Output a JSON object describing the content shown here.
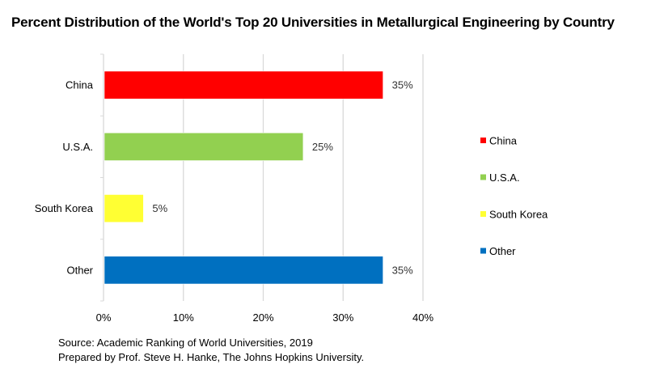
{
  "chart_data": {
    "type": "bar",
    "orientation": "horizontal",
    "title": "Percent Distribution of the World's Top 20 Universities in Metallurgical Engineering by Country",
    "categories": [
      "China",
      "U.S.A.",
      "South Korea",
      "Other"
    ],
    "values": [
      35,
      25,
      5,
      35
    ],
    "value_unit": "%",
    "data_labels": [
      "35%",
      "25%",
      "5%",
      "35%"
    ],
    "colors": [
      "#ff0000",
      "#92d050",
      "#ffff33",
      "#0070c0"
    ],
    "xlim": [
      0,
      40
    ],
    "xticks": [
      0,
      10,
      20,
      30,
      40
    ],
    "xtick_labels": [
      "0%",
      "10%",
      "20%",
      "30%",
      "40%"
    ],
    "xlabel": "",
    "ylabel": "",
    "grid": true,
    "legend": {
      "placement": "right",
      "entries": [
        "China",
        "U.S.A.",
        "South Korea",
        "Other"
      ]
    }
  },
  "footer": {
    "source": "Source: Academic Ranking of World Universities, 2019",
    "prepared_by": "Prepared by Prof. Steve H. Hanke, The Johns Hopkins University."
  }
}
